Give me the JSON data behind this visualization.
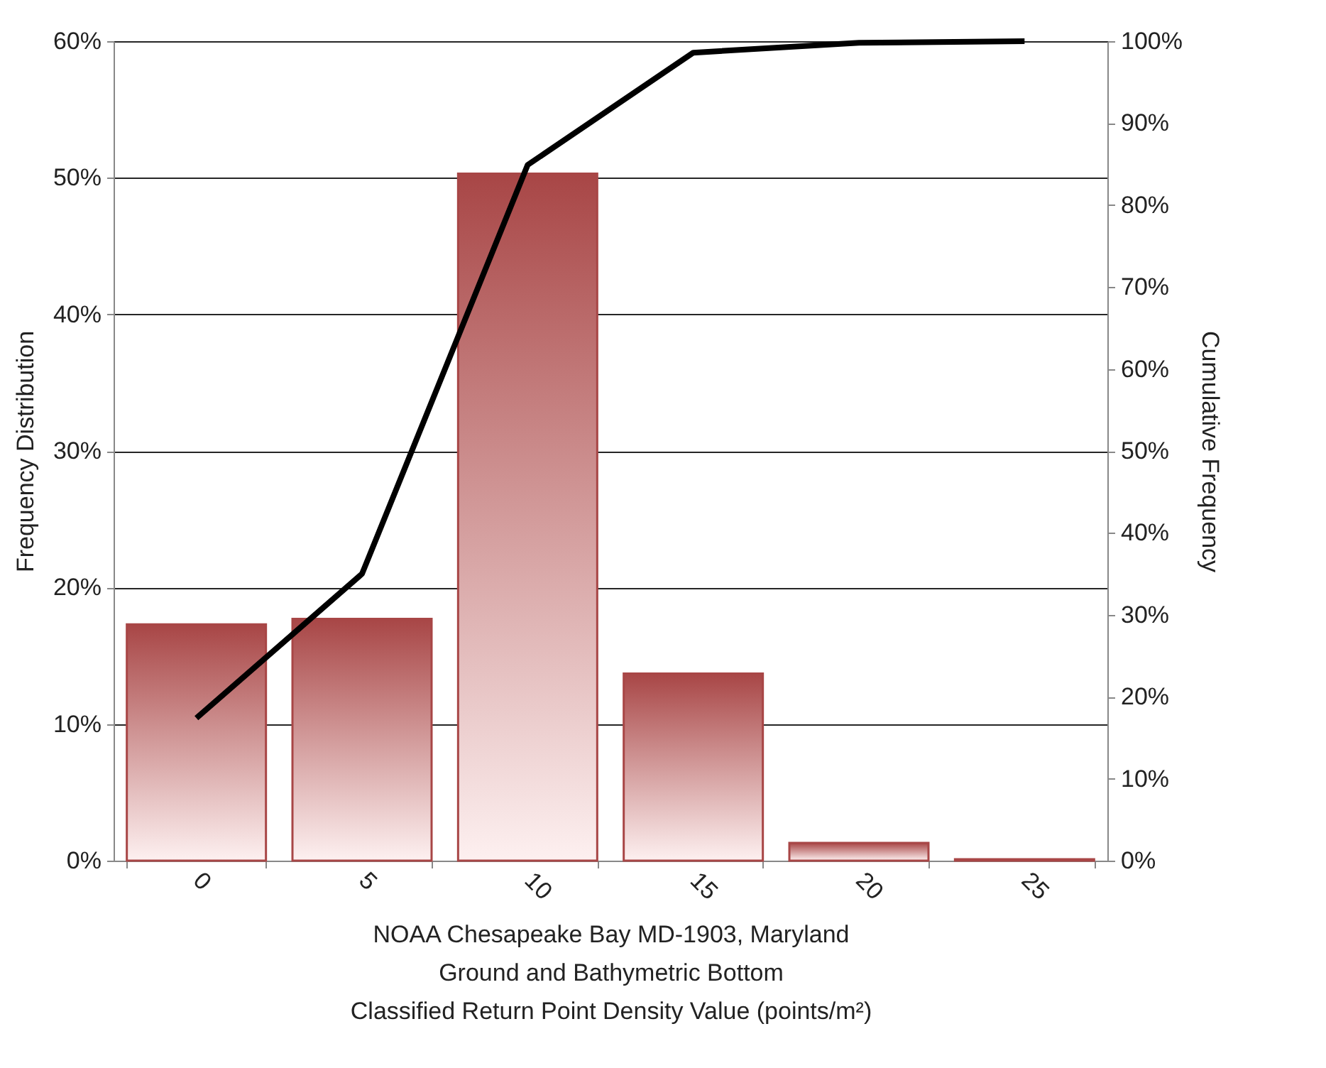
{
  "chart_data": {
    "type": "bar",
    "xlabel": "NOAA Chesapeake Bay MD-1903, Maryland\nGround and Bathymetric Bottom\nClassified Return Point Density Value (points/m²)",
    "ylabel": "Frequency Distribution",
    "y2label": "Cumulative Frequency",
    "categories": [
      "0",
      "5",
      "10",
      "15",
      "20",
      "25"
    ],
    "series": [
      {
        "color": "#a84646",
        "values": [
          17.3,
          17.7,
          50.3,
          13.7,
          1.3,
          0.1
        ]
      },
      {
        "type": "line",
        "axis": "y2",
        "color": "#000000",
        "values": [
          17.4,
          35.0,
          84.9,
          98.6,
          99.8,
          100
        ]
      }
    ],
    "ylim": [
      0,
      60
    ],
    "yticks": [
      {
        "value": 0,
        "label": "0%"
      },
      {
        "value": 10,
        "label": "10%"
      },
      {
        "value": 20,
        "label": "20%"
      },
      {
        "value": 30,
        "label": "30%"
      },
      {
        "value": 40,
        "label": "40%"
      },
      {
        "value": 50,
        "label": "50%"
      },
      {
        "value": 60,
        "label": "60%"
      }
    ],
    "y2lim": [
      0,
      100
    ],
    "y2ticks": [
      {
        "value": 0,
        "label": "0%"
      },
      {
        "value": 10,
        "label": "10%"
      },
      {
        "value": 20,
        "label": "20%"
      },
      {
        "value": 30,
        "label": "30%"
      },
      {
        "value": 40,
        "label": "40%"
      },
      {
        "value": 50,
        "label": "50%"
      },
      {
        "value": 60,
        "label": "60%"
      },
      {
        "value": 70,
        "label": "70%"
      },
      {
        "value": 80,
        "label": "80%"
      },
      {
        "value": 90,
        "label": "90%"
      },
      {
        "value": 100,
        "label": "100%"
      }
    ],
    "grid": "y",
    "marker": "none",
    "line_style": "solid"
  }
}
